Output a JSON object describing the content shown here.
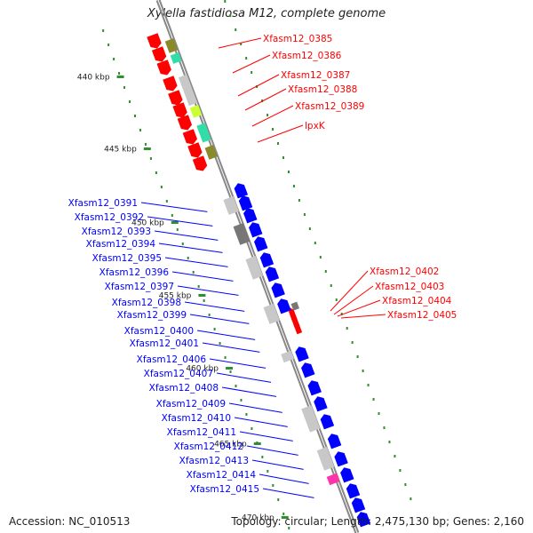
{
  "title": "Xylella fastidiosa M12, complete genome",
  "footer": {
    "accession": "Accession: NC_010513",
    "topology": "Topology: circular; Length: 2,475,130 bp; Genes: 2,160"
  },
  "scale_marks": [
    "440 kbp",
    "445 kbp",
    "450 kbp",
    "455 kbp",
    "460 kbp",
    "465 kbp",
    "470 kbp"
  ],
  "colors": {
    "forward_strand": "#ff0000",
    "reverse_strand": "#0000ff",
    "backbone": "#888888",
    "tick": "#2f8f2f",
    "gray_light": "#c8c8c8",
    "gray_dark": "#777777",
    "olive": "#8a8a2a",
    "cyan": "#33ddaa",
    "lime": "#ccff33",
    "magenta": "#ff33aa"
  },
  "genes_red": [
    {
      "label": "Xfasm12_0385"
    },
    {
      "label": "Xfasm12_0386"
    },
    {
      "label": "Xfasm12_0387"
    },
    {
      "label": "Xfasm12_0388"
    },
    {
      "label": "Xfasm12_0389"
    },
    {
      "label": "lpxK"
    },
    {
      "label": "Xfasm12_0402"
    },
    {
      "label": "Xfasm12_0403"
    },
    {
      "label": "Xfasm12_0404"
    },
    {
      "label": "Xfasm12_0405"
    }
  ],
  "genes_blue": [
    {
      "label": "Xfasm12_0391"
    },
    {
      "label": "Xfasm12_0392"
    },
    {
      "label": "Xfasm12_0393"
    },
    {
      "label": "Xfasm12_0394"
    },
    {
      "label": "Xfasm12_0395"
    },
    {
      "label": "Xfasm12_0396"
    },
    {
      "label": "Xfasm12_0397"
    },
    {
      "label": "Xfasm12_0398"
    },
    {
      "label": "Xfasm12_0399"
    },
    {
      "label": "Xfasm12_0400"
    },
    {
      "label": "Xfasm12_0401"
    },
    {
      "label": "Xfasm12_0406"
    },
    {
      "label": "Xfasm12_0407"
    },
    {
      "label": "Xfasm12_0408"
    },
    {
      "label": "Xfasm12_0409"
    },
    {
      "label": "Xfasm12_0410"
    },
    {
      "label": "Xfasm12_0411"
    },
    {
      "label": "Xfasm12_0412"
    },
    {
      "label": "Xfasm12_0413"
    },
    {
      "label": "Xfasm12_0414"
    },
    {
      "label": "Xfasm12_0415"
    }
  ]
}
